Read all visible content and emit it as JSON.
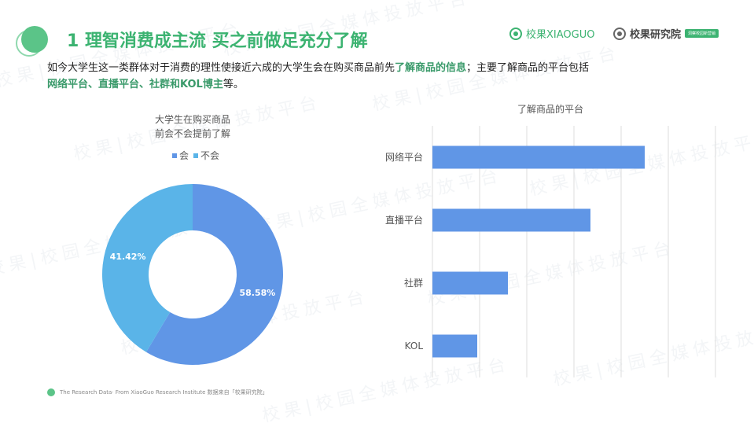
{
  "header": {
    "title": "1 理智消费成主流 买之前做足充分了解",
    "brand_name": "校果XIAOGUO",
    "brand2_name": "校果研究院",
    "brand2_tag": "洞察校园新营销",
    "watermark_text": "校果|校园全媒体投放平台"
  },
  "intro": {
    "part1": "如今大学生这一类群体对于消费的理性使接近六成的大学生会在购买商品前先",
    "highlight1": "了解商品的信息",
    "part2": "；主要了解商品的平台包括",
    "highlight2": "网络平台、直播平台、社群和KOL博主",
    "part3": "等。"
  },
  "chart_data": [
    {
      "type": "pie",
      "title_line1": "大学生在购买商品",
      "title_line2": "前会不会提前了解",
      "categories": [
        "会",
        "不会"
      ],
      "values": [
        58.58,
        41.42
      ],
      "data_labels": [
        "58.58%",
        "41.42%"
      ],
      "colors": [
        "#6096e6",
        "#5ab4e8"
      ],
      "legend_position": "top"
    },
    {
      "type": "bar",
      "orientation": "horizontal",
      "title": "了解商品的平台",
      "categories": [
        "网络平台",
        "直播平台",
        "社群",
        "KOL"
      ],
      "values": [
        0.9,
        0.67,
        0.32,
        0.19
      ],
      "xlim": [
        0,
        1.2
      ],
      "grid": true,
      "color": "#6096e6"
    }
  ],
  "footer": {
    "text": "The Research Data· From XiaoGuo Research Institute 数据来自「校果研究院」"
  }
}
